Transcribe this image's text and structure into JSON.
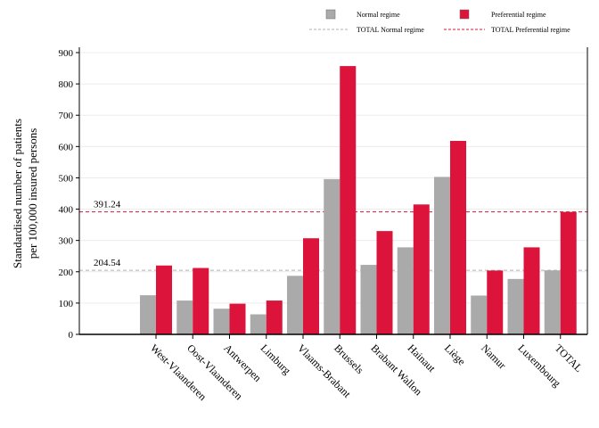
{
  "chart_data": {
    "type": "bar",
    "categories": [
      "West-Vlaanderen",
      "Oost-Vlaanderen",
      "Antwerpen",
      "Limburg",
      "Vlaams-Brabant",
      "Brussels",
      "Brabant Wallon",
      "Hainaut",
      "Liège",
      "Namur",
      "Luxembourg",
      "TOTAL"
    ],
    "series": [
      {
        "name": "Normal regime",
        "color": "#aaaaaa",
        "values": [
          125,
          108,
          82,
          64,
          187,
          496,
          222,
          278,
          503,
          124,
          177,
          204.54
        ]
      },
      {
        "name": "Preferential regime",
        "color": "#dc143c",
        "values": [
          220,
          212,
          98,
          108,
          307,
          857,
          330,
          415,
          618,
          204,
          278,
          391.24
        ]
      }
    ],
    "reference_lines": [
      {
        "name": "TOTAL Normal regime",
        "value": 204.54,
        "label": "204.54",
        "color": "#b0b0b0"
      },
      {
        "name": "TOTAL Preferential regime",
        "value": 391.24,
        "label": "391.24",
        "color": "#dc143c"
      }
    ],
    "ylabel": [
      "Standardised number of patients",
      "per 100,000 insured persons"
    ],
    "ylim": [
      0,
      900
    ],
    "yticks": [
      0,
      100,
      200,
      300,
      400,
      500,
      600,
      700,
      800,
      900
    ],
    "grid": true,
    "legend_position": "top-right"
  }
}
